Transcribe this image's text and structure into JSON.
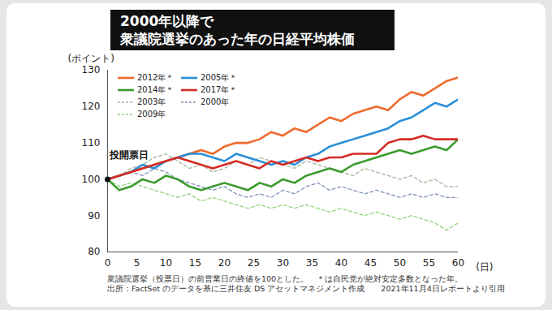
{
  "chart_data": {
    "type": "line",
    "title": "2000年以降で\n衆議院選挙のあった年の日経平均株価",
    "y_label": "(ポイント)",
    "x_label": "(日)",
    "notes": [
      "衆議院選挙（投票日）の前営業日の終値を100とした。　＊は自民党が絶対安定多数となった年。",
      "出所：FactSet のデータを基に三井住友 DS アセットマネジメント作成　　2021年11月4日レポートより引用"
    ],
    "annotations": [
      {
        "text": "投開票日",
        "x": 0,
        "y": 100
      }
    ],
    "x": [
      0,
      2,
      4,
      6,
      8,
      10,
      12,
      14,
      16,
      18,
      20,
      22,
      24,
      26,
      28,
      30,
      32,
      34,
      36,
      38,
      40,
      42,
      44,
      46,
      48,
      50,
      52,
      54,
      56,
      58,
      60
    ],
    "series": [
      {
        "name": "2012年＊",
        "color": "#ee6a2c",
        "line_style": "solid",
        "values": [
          100,
          101,
          102,
          103,
          104,
          105,
          106,
          107,
          108,
          107,
          109,
          110,
          110,
          111,
          113,
          112,
          114,
          113,
          115,
          117,
          116,
          118,
          119,
          120,
          119,
          122,
          124,
          123,
          125,
          127,
          128
        ]
      },
      {
        "name": "2005年＊",
        "color": "#2a8fd8",
        "line_style": "solid",
        "values": [
          100,
          101,
          102,
          104,
          103,
          105,
          106,
          107,
          107,
          106,
          105,
          107,
          106,
          105,
          104,
          105,
          104,
          106,
          107,
          109,
          110,
          111,
          112,
          113,
          114,
          116,
          117,
          119,
          121,
          120,
          122
        ]
      },
      {
        "name": "2014年＊",
        "color": "#3b9a2e",
        "line_style": "solid",
        "values": [
          100,
          97,
          98,
          100,
          99,
          101,
          100,
          98,
          97,
          98,
          99,
          98,
          97,
          99,
          98,
          100,
          99,
          101,
          102,
          103,
          102,
          104,
          105,
          106,
          107,
          108,
          107,
          108,
          109,
          108,
          111
        ]
      },
      {
        "name": "2017年＊",
        "color": "#d42c25",
        "line_style": "solid",
        "values": [
          100,
          101,
          102,
          103,
          104,
          105,
          106,
          105,
          104,
          103,
          104,
          105,
          104,
          103,
          105,
          104,
          105,
          106,
          105,
          106,
          106,
          107,
          107,
          107,
          110,
          111,
          111,
          112,
          111,
          111,
          111
        ]
      },
      {
        "name": "2003年",
        "color": "#a3b79a",
        "line_style": "dashed",
        "values": [
          100,
          101,
          103,
          104,
          106,
          107,
          105,
          103,
          104,
          102,
          103,
          105,
          104,
          106,
          105,
          104,
          103,
          105,
          104,
          103,
          102,
          101,
          103,
          102,
          101,
          100,
          101,
          99,
          100,
          98,
          98
        ]
      },
      {
        "name": "2000年",
        "color": "#8193b8",
        "line_style": "dashed",
        "values": [
          100,
          101,
          102,
          101,
          103,
          102,
          100,
          99,
          98,
          97,
          98,
          96,
          95,
          96,
          95,
          97,
          96,
          98,
          99,
          97,
          98,
          97,
          96,
          97,
          96,
          95,
          96,
          95,
          96,
          95,
          95
        ]
      },
      {
        "name": "2009年",
        "color": "#8fd47a",
        "line_style": "dashed",
        "values": [
          100,
          98,
          99,
          98,
          97,
          96,
          95,
          96,
          94,
          95,
          94,
          93,
          92,
          93,
          92,
          93,
          92,
          93,
          92,
          91,
          92,
          91,
          90,
          91,
          90,
          89,
          90,
          89,
          88,
          86,
          88
        ]
      }
    ],
    "xlim": [
      0,
      60
    ],
    "xticks": [
      0,
      5,
      10,
      15,
      20,
      25,
      30,
      35,
      40,
      45,
      50,
      55,
      60
    ],
    "ylim": [
      80,
      130
    ],
    "yticks": [
      80,
      90,
      100,
      110,
      120,
      130
    ],
    "grid": false,
    "legend": "top-left"
  }
}
